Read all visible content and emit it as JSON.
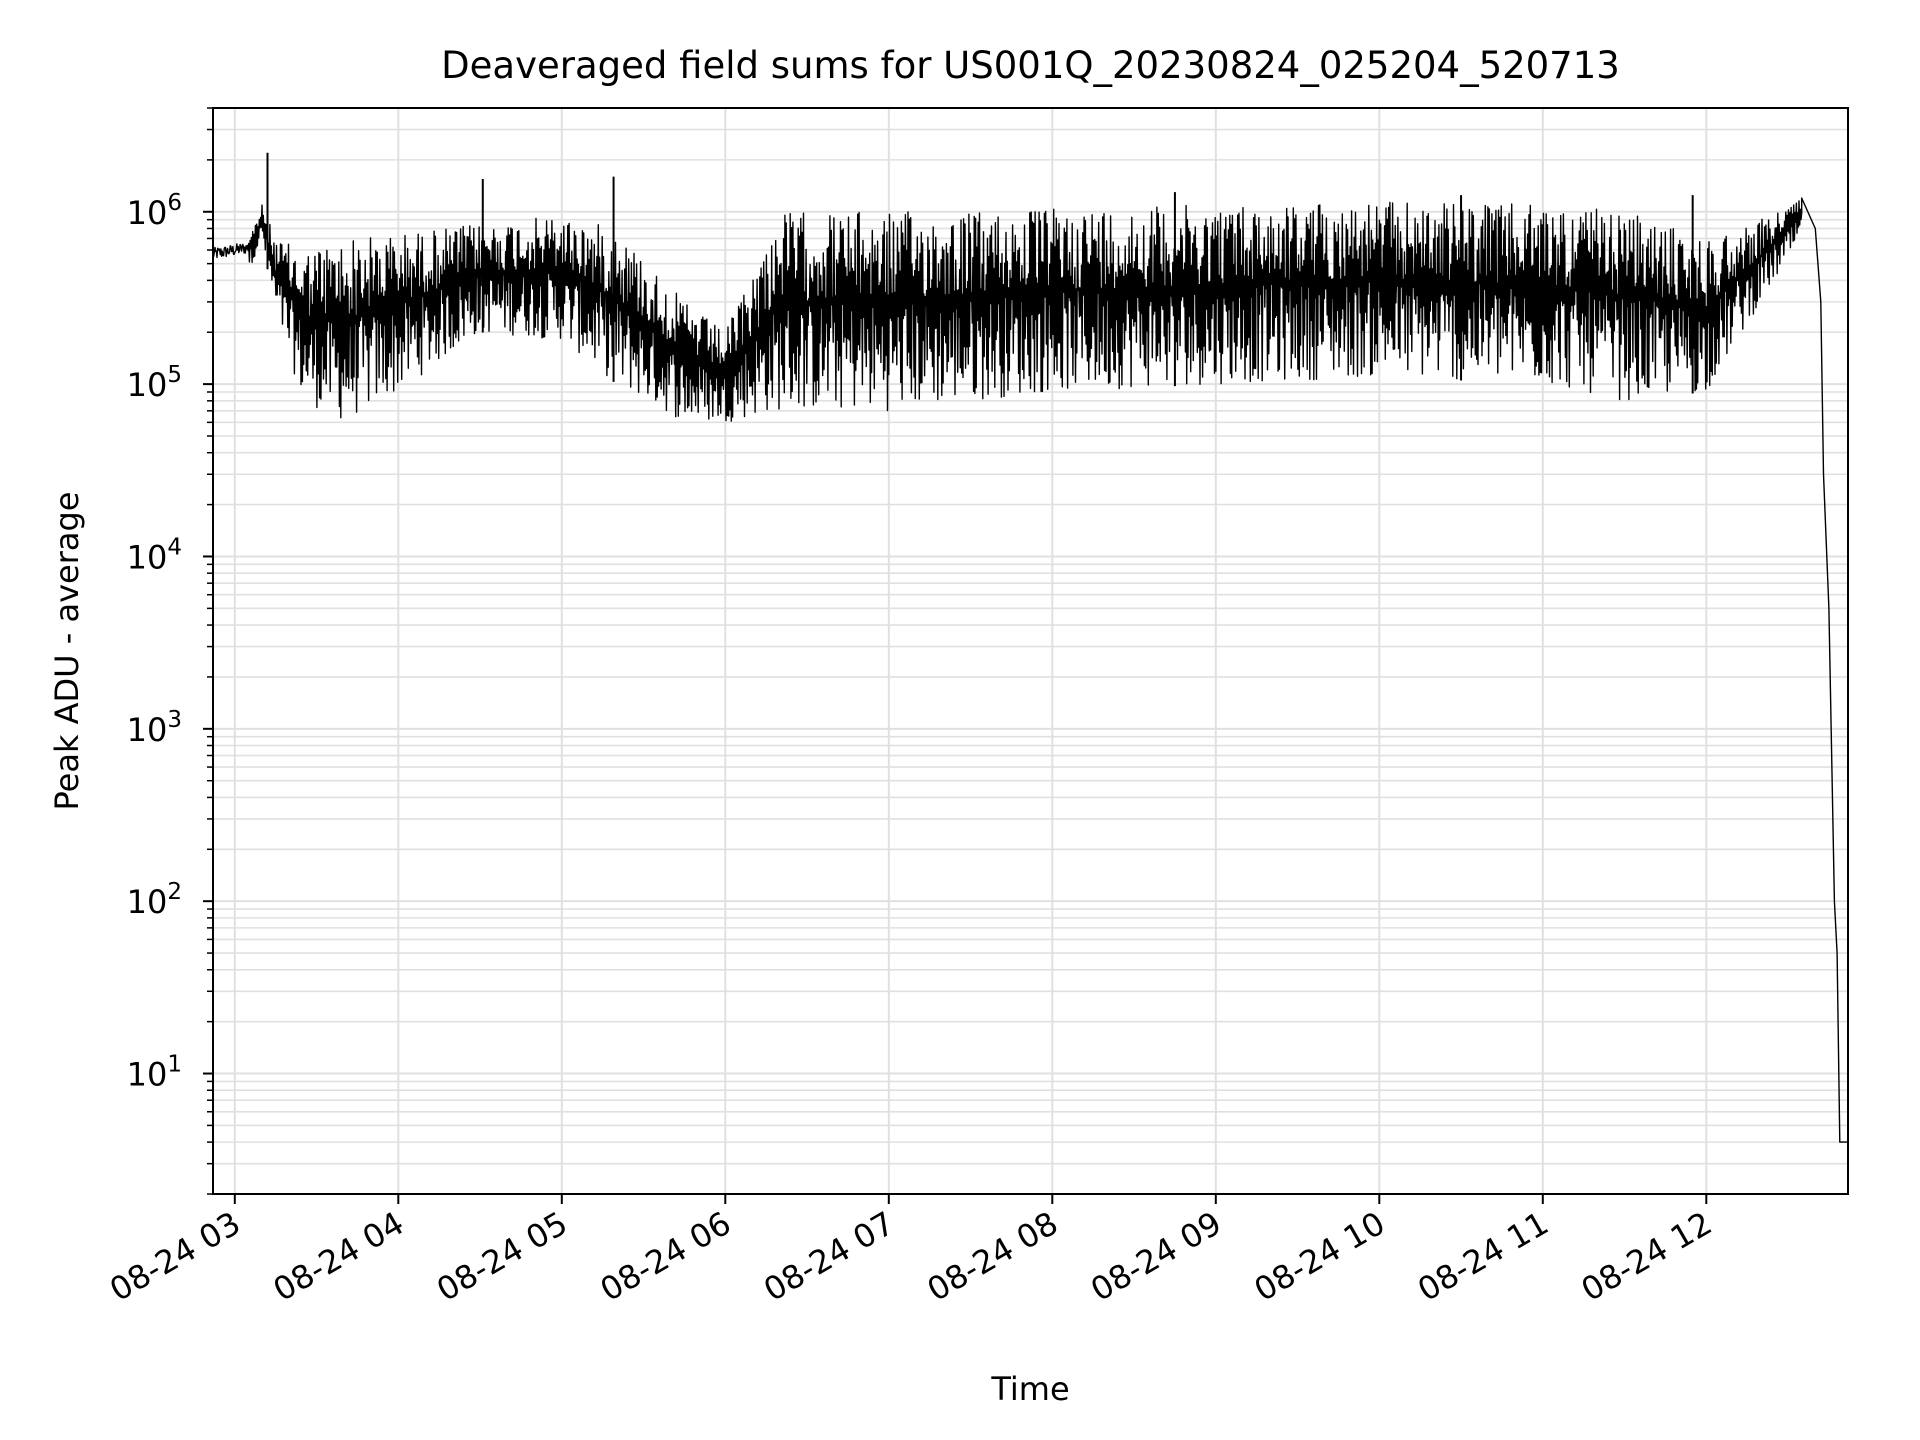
{
  "chart_data": {
    "type": "line",
    "title": "Deaveraged field sums for US001Q_20230824_025204_520713",
    "xlabel": "Time",
    "ylabel": "Peak ADU - average",
    "yscale": "log",
    "ylim": [
      2,
      4000000
    ],
    "xlim": [
      "2023-08-24 02:52",
      "2023-08-24 12:52"
    ],
    "grid": true,
    "line_color": "#000000",
    "grid_color": "#e0e0e0",
    "x_ticks": [
      {
        "time": "2023-08-24 03:00",
        "label": "08-24 03"
      },
      {
        "time": "2023-08-24 04:00",
        "label": "08-24 04"
      },
      {
        "time": "2023-08-24 05:00",
        "label": "08-24 05"
      },
      {
        "time": "2023-08-24 06:00",
        "label": "08-24 06"
      },
      {
        "time": "2023-08-24 07:00",
        "label": "08-24 07"
      },
      {
        "time": "2023-08-24 08:00",
        "label": "08-24 08"
      },
      {
        "time": "2023-08-24 09:00",
        "label": "08-24 09"
      },
      {
        "time": "2023-08-24 10:00",
        "label": "08-24 10"
      },
      {
        "time": "2023-08-24 11:00",
        "label": "08-24 11"
      },
      {
        "time": "2023-08-24 12:00",
        "label": "08-24 12"
      }
    ],
    "y_ticks": [
      {
        "value": 10,
        "base": "10",
        "exp": "1"
      },
      {
        "value": 100,
        "base": "10",
        "exp": "2"
      },
      {
        "value": 1000,
        "base": "10",
        "exp": "3"
      },
      {
        "value": 10000,
        "base": "10",
        "exp": "4"
      },
      {
        "value": 100000,
        "base": "10",
        "exp": "5"
      },
      {
        "value": 1000000,
        "base": "10",
        "exp": "6"
      }
    ],
    "envelope": [
      {
        "time": "2023-08-24 02:52",
        "low": 400000,
        "high": 650000
      },
      {
        "time": "2023-08-24 03:05",
        "low": 450000,
        "high": 700000
      },
      {
        "time": "2023-08-24 03:10",
        "low": 700000,
        "high": 1100000
      },
      {
        "time": "2023-08-24 03:15",
        "low": 250000,
        "high": 700000
      },
      {
        "time": "2023-08-24 03:25",
        "low": 80000,
        "high": 600000
      },
      {
        "time": "2023-08-24 03:40",
        "low": 60000,
        "high": 700000
      },
      {
        "time": "2023-08-24 04:00",
        "low": 90000,
        "high": 750000
      },
      {
        "time": "2023-08-24 04:30",
        "low": 200000,
        "high": 850000
      },
      {
        "time": "2023-08-24 05:00",
        "low": 180000,
        "high": 950000
      },
      {
        "time": "2023-08-24 05:20",
        "low": 100000,
        "high": 800000
      },
      {
        "time": "2023-08-24 05:45",
        "low": 60000,
        "high": 300000
      },
      {
        "time": "2023-08-24 06:00",
        "low": 60000,
        "high": 200000
      },
      {
        "time": "2023-08-24 06:20",
        "low": 70000,
        "high": 1000000
      },
      {
        "time": "2023-08-24 07:00",
        "low": 70000,
        "high": 1000000
      },
      {
        "time": "2023-08-24 07:30",
        "low": 80000,
        "high": 1000000
      },
      {
        "time": "2023-08-24 08:00",
        "low": 90000,
        "high": 1050000
      },
      {
        "time": "2023-08-24 09:00",
        "low": 100000,
        "high": 1100000
      },
      {
        "time": "2023-08-24 10:00",
        "low": 110000,
        "high": 1150000
      },
      {
        "time": "2023-08-24 11:00",
        "low": 100000,
        "high": 1100000
      },
      {
        "time": "2023-08-24 11:30",
        "low": 80000,
        "high": 1000000
      },
      {
        "time": "2023-08-24 12:00",
        "low": 90000,
        "high": 700000
      },
      {
        "time": "2023-08-24 12:20",
        "low": 300000,
        "high": 900000
      },
      {
        "time": "2023-08-24 12:35",
        "low": 700000,
        "high": 1200000
      }
    ],
    "spikes": [
      {
        "time": "2023-08-24 03:12",
        "value": 2200000
      },
      {
        "time": "2023-08-24 04:31",
        "value": 1550000
      },
      {
        "time": "2023-08-24 05:19",
        "value": 1600000
      },
      {
        "time": "2023-08-24 08:45",
        "value": 1300000
      },
      {
        "time": "2023-08-24 10:30",
        "value": 1250000
      },
      {
        "time": "2023-08-24 11:55",
        "value": 1250000
      }
    ],
    "tail": [
      {
        "time": "2023-08-24 12:35",
        "value": 1200000
      },
      {
        "time": "2023-08-24 12:40",
        "value": 800000
      },
      {
        "time": "2023-08-24 12:42",
        "value": 300000
      },
      {
        "time": "2023-08-24 12:43",
        "value": 30000
      },
      {
        "time": "2023-08-24 12:45",
        "value": 5000
      },
      {
        "time": "2023-08-24 12:47",
        "value": 100
      },
      {
        "time": "2023-08-24 12:48",
        "value": 50
      },
      {
        "time": "2023-08-24 12:49",
        "value": 4
      },
      {
        "time": "2023-08-24 12:52",
        "value": 4
      }
    ]
  }
}
